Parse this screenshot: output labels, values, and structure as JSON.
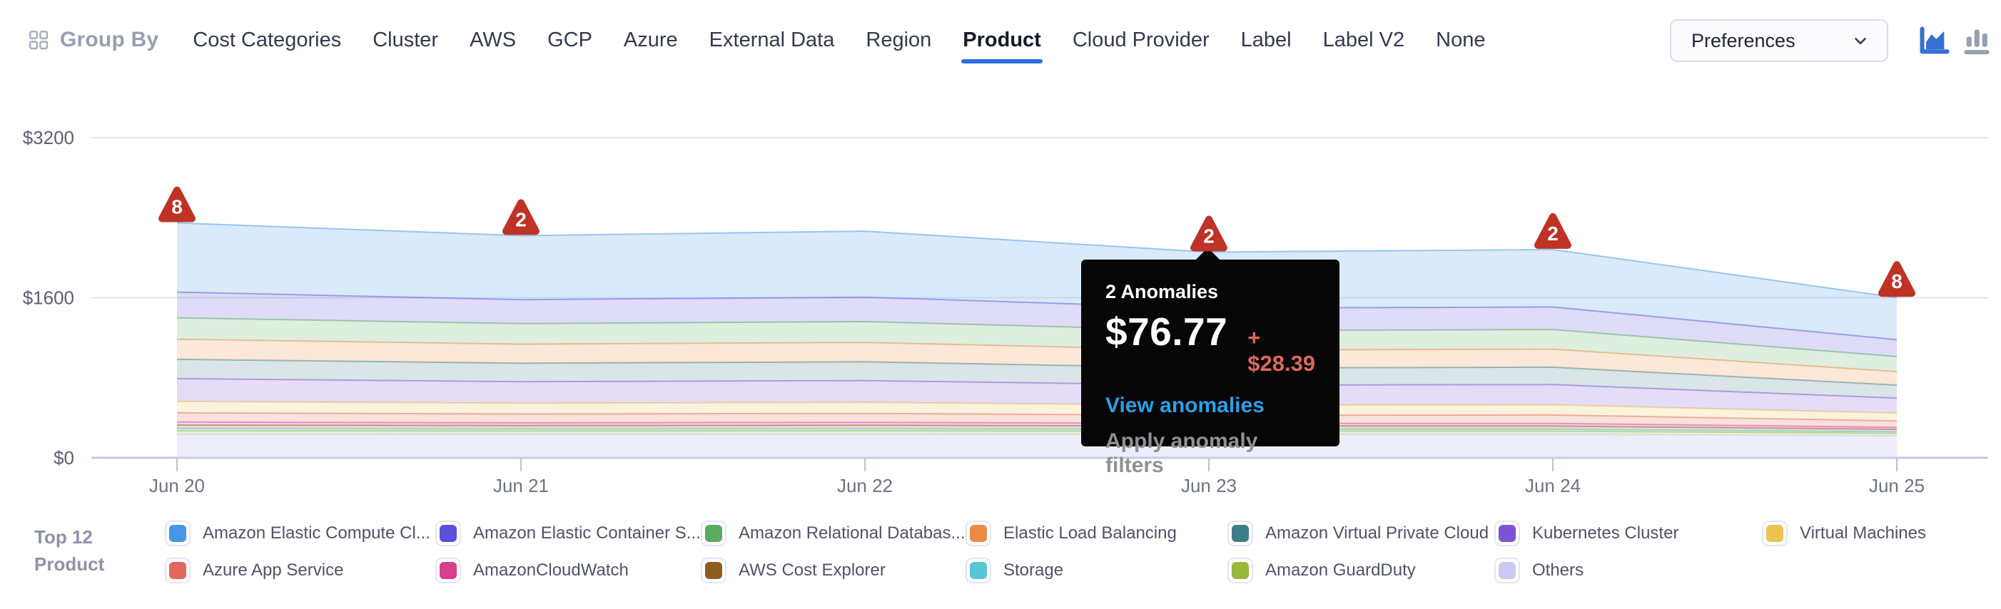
{
  "nav": {
    "group_by_label": "Group By",
    "tabs": [
      {
        "label": "Cost Categories",
        "active": false
      },
      {
        "label": "Cluster",
        "active": false
      },
      {
        "label": "AWS",
        "active": false
      },
      {
        "label": "GCP",
        "active": false
      },
      {
        "label": "Azure",
        "active": false
      },
      {
        "label": "External Data",
        "active": false
      },
      {
        "label": "Region",
        "active": false
      },
      {
        "label": "Product",
        "active": true
      },
      {
        "label": "Cloud Provider",
        "active": false
      },
      {
        "label": "Label",
        "active": false
      },
      {
        "label": "Label V2",
        "active": false
      },
      {
        "label": "None",
        "active": false
      }
    ],
    "preferences_label": "Preferences",
    "accent_color": "#2e6ce6",
    "chart_type_icons": [
      {
        "name": "area-chart-icon",
        "color": "#3570d4",
        "active": true
      },
      {
        "name": "bar-chart-icon",
        "color": "#99a0ae",
        "active": false
      }
    ]
  },
  "tooltip": {
    "title": "2 Anomalies",
    "amount": "$76.77",
    "delta": "+ $28.39",
    "link_label": "View anomalies",
    "action_label": "Apply anomaly filters",
    "anchor_x": "Jun 23",
    "background": "#060607",
    "delta_color": "#dc685d",
    "link_color": "#2c9fe4"
  },
  "chart_data": {
    "type": "area",
    "stacked": true,
    "grid": true,
    "x": [
      "Jun 20",
      "Jun 21",
      "Jun 22",
      "Jun 23",
      "Jun 24",
      "Jun 25"
    ],
    "ylim": [
      0,
      3200
    ],
    "y_ticks": [
      {
        "value": 0,
        "label": "$0"
      },
      {
        "value": 1600,
        "label": "$1600"
      },
      {
        "value": 3200,
        "label": "$3200"
      }
    ],
    "anomaly_marker_color": "#bf3226",
    "anomalies": [
      {
        "x": "Jun 20",
        "count": 8
      },
      {
        "x": "Jun 21",
        "count": 2
      },
      {
        "x": "Jun 23",
        "count": 2
      },
      {
        "x": "Jun 24",
        "count": 2
      },
      {
        "x": "Jun 25",
        "count": 8
      }
    ],
    "legend_title_lines": [
      "Top 12",
      "Product"
    ],
    "series": [
      {
        "name": "Amazon Elastic Compute Cl...",
        "color": "#4596e6",
        "values": [
          692,
          640,
          660,
          560,
          575,
          420
        ]
      },
      {
        "name": "Amazon Elastic Container S...",
        "color": "#5a50d9",
        "values": [
          257,
          240,
          245,
          225,
          225,
          170
        ]
      },
      {
        "name": "Amazon Relational Databas...",
        "color": "#5cab60",
        "values": [
          214,
          205,
          208,
          195,
          196,
          150
        ]
      },
      {
        "name": "Elastic Load Balancing",
        "color": "#ec8b43",
        "values": [
          200,
          190,
          193,
          178,
          180,
          135
        ]
      },
      {
        "name": "Amazon Virtual Private Cloud",
        "color": "#3f7e86",
        "values": [
          193,
          185,
          188,
          172,
          174,
          130
        ]
      },
      {
        "name": "Kubernetes Cluster",
        "color": "#7e52d6",
        "values": [
          228,
          215,
          218,
          200,
          202,
          150
        ]
      },
      {
        "name": "Virtual Machines",
        "color": "#eec24f",
        "values": [
          114,
          108,
          110,
          100,
          102,
          78
        ]
      },
      {
        "name": "Azure App Service",
        "color": "#e2685c",
        "values": [
          93,
          88,
          90,
          82,
          84,
          64
        ]
      },
      {
        "name": "AmazonCloudWatch",
        "color": "#d93d8d",
        "values": [
          29,
          27,
          28,
          26,
          26,
          20
        ]
      },
      {
        "name": "AWS Cost Explorer",
        "color": "#8d5c20",
        "values": [
          36,
          34,
          35,
          32,
          32,
          25
        ]
      },
      {
        "name": "Storage",
        "color": "#58c6d6",
        "values": [
          21,
          20,
          21,
          19,
          19,
          15
        ]
      },
      {
        "name": "Amazon GuardDuty",
        "color": "#97b838",
        "values": [
          36,
          34,
          35,
          32,
          32,
          25
        ]
      },
      {
        "name": "Others",
        "color": "#c9cbf2",
        "values": [
          235,
          235,
          235,
          235,
          235,
          220
        ]
      }
    ]
  }
}
